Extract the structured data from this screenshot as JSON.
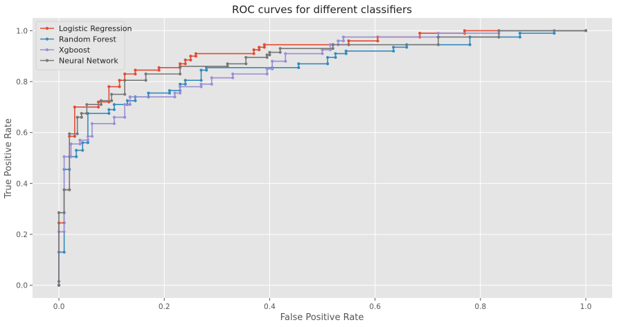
{
  "chart_data": {
    "type": "line",
    "title": "ROC curves for different classifiers",
    "xlabel": "False Positive Rate",
    "ylabel": "True Positive Rate",
    "xlim": [
      -0.05,
      1.05
    ],
    "ylim": [
      -0.05,
      1.05
    ],
    "xticks": [
      0.0,
      0.2,
      0.4,
      0.6,
      0.8,
      1.0
    ],
    "yticks": [
      0.0,
      0.2,
      0.4,
      0.6,
      0.8,
      1.0
    ],
    "xtick_labels": [
      "0.0",
      "0.2",
      "0.4",
      "0.6",
      "0.8",
      "1.0"
    ],
    "ytick_labels": [
      "0.0",
      "0.2",
      "0.4",
      "0.6",
      "0.8",
      "1.0"
    ],
    "grid": true,
    "legend_position": "top-left",
    "style": {
      "plot_background": "#e5e5e5",
      "grid_color": "#ffffff"
    },
    "series": [
      {
        "name": "Logistic Regression",
        "color": "#e24a33",
        "points": [
          [
            0.0,
            0.0
          ],
          [
            0.0,
            0.245
          ],
          [
            0.01,
            0.245
          ],
          [
            0.01,
            0.375
          ],
          [
            0.02,
            0.375
          ],
          [
            0.02,
            0.585
          ],
          [
            0.03,
            0.585
          ],
          [
            0.03,
            0.7
          ],
          [
            0.075,
            0.7
          ],
          [
            0.075,
            0.72
          ],
          [
            0.095,
            0.72
          ],
          [
            0.095,
            0.78
          ],
          [
            0.115,
            0.78
          ],
          [
            0.115,
            0.805
          ],
          [
            0.125,
            0.805
          ],
          [
            0.125,
            0.83
          ],
          [
            0.145,
            0.83
          ],
          [
            0.145,
            0.845
          ],
          [
            0.19,
            0.845
          ],
          [
            0.19,
            0.855
          ],
          [
            0.23,
            0.855
          ],
          [
            0.23,
            0.87
          ],
          [
            0.24,
            0.87
          ],
          [
            0.24,
            0.885
          ],
          [
            0.25,
            0.885
          ],
          [
            0.25,
            0.9
          ],
          [
            0.26,
            0.9
          ],
          [
            0.26,
            0.91
          ],
          [
            0.37,
            0.91
          ],
          [
            0.37,
            0.925
          ],
          [
            0.38,
            0.925
          ],
          [
            0.38,
            0.935
          ],
          [
            0.39,
            0.935
          ],
          [
            0.39,
            0.945
          ],
          [
            0.52,
            0.945
          ],
          [
            0.55,
            0.945
          ],
          [
            0.55,
            0.96
          ],
          [
            0.605,
            0.96
          ],
          [
            0.605,
            0.975
          ],
          [
            0.685,
            0.975
          ],
          [
            0.685,
            0.99
          ],
          [
            0.77,
            0.99
          ],
          [
            0.77,
            1.0
          ],
          [
            1.0,
            1.0
          ]
        ]
      },
      {
        "name": "Random Forest",
        "color": "#348abd",
        "points": [
          [
            0.0,
            0.0
          ],
          [
            0.0,
            0.13
          ],
          [
            0.01,
            0.13
          ],
          [
            0.01,
            0.455
          ],
          [
            0.02,
            0.455
          ],
          [
            0.02,
            0.505
          ],
          [
            0.033,
            0.505
          ],
          [
            0.033,
            0.53
          ],
          [
            0.045,
            0.53
          ],
          [
            0.045,
            0.56
          ],
          [
            0.055,
            0.56
          ],
          [
            0.055,
            0.675
          ],
          [
            0.095,
            0.675
          ],
          [
            0.095,
            0.69
          ],
          [
            0.105,
            0.69
          ],
          [
            0.105,
            0.71
          ],
          [
            0.13,
            0.71
          ],
          [
            0.13,
            0.725
          ],
          [
            0.145,
            0.725
          ],
          [
            0.145,
            0.74
          ],
          [
            0.17,
            0.74
          ],
          [
            0.17,
            0.755
          ],
          [
            0.21,
            0.755
          ],
          [
            0.21,
            0.765
          ],
          [
            0.23,
            0.765
          ],
          [
            0.23,
            0.79
          ],
          [
            0.24,
            0.79
          ],
          [
            0.24,
            0.805
          ],
          [
            0.27,
            0.805
          ],
          [
            0.27,
            0.845
          ],
          [
            0.28,
            0.845
          ],
          [
            0.28,
            0.855
          ],
          [
            0.405,
            0.855
          ],
          [
            0.455,
            0.855
          ],
          [
            0.455,
            0.87
          ],
          [
            0.51,
            0.87
          ],
          [
            0.51,
            0.895
          ],
          [
            0.525,
            0.895
          ],
          [
            0.525,
            0.91
          ],
          [
            0.545,
            0.91
          ],
          [
            0.545,
            0.92
          ],
          [
            0.635,
            0.92
          ],
          [
            0.635,
            0.935
          ],
          [
            0.66,
            0.935
          ],
          [
            0.66,
            0.945
          ],
          [
            0.78,
            0.945
          ],
          [
            0.78,
            0.975
          ],
          [
            0.875,
            0.975
          ],
          [
            0.875,
            0.99
          ],
          [
            0.94,
            0.99
          ],
          [
            0.94,
            1.0
          ],
          [
            1.0,
            1.0
          ]
        ]
      },
      {
        "name": "Xgboost",
        "color": "#988ed5",
        "points": [
          [
            0.0,
            0.0
          ],
          [
            0.0,
            0.21
          ],
          [
            0.01,
            0.21
          ],
          [
            0.01,
            0.505
          ],
          [
            0.023,
            0.505
          ],
          [
            0.023,
            0.555
          ],
          [
            0.04,
            0.555
          ],
          [
            0.04,
            0.57
          ],
          [
            0.055,
            0.57
          ],
          [
            0.055,
            0.585
          ],
          [
            0.063,
            0.585
          ],
          [
            0.063,
            0.635
          ],
          [
            0.105,
            0.635
          ],
          [
            0.105,
            0.66
          ],
          [
            0.125,
            0.66
          ],
          [
            0.125,
            0.71
          ],
          [
            0.135,
            0.71
          ],
          [
            0.135,
            0.74
          ],
          [
            0.22,
            0.74
          ],
          [
            0.22,
            0.755
          ],
          [
            0.23,
            0.755
          ],
          [
            0.23,
            0.78
          ],
          [
            0.27,
            0.78
          ],
          [
            0.27,
            0.79
          ],
          [
            0.29,
            0.79
          ],
          [
            0.29,
            0.815
          ],
          [
            0.33,
            0.815
          ],
          [
            0.33,
            0.83
          ],
          [
            0.395,
            0.83
          ],
          [
            0.395,
            0.85
          ],
          [
            0.405,
            0.85
          ],
          [
            0.405,
            0.88
          ],
          [
            0.43,
            0.88
          ],
          [
            0.43,
            0.91
          ],
          [
            0.5,
            0.91
          ],
          [
            0.5,
            0.925
          ],
          [
            0.515,
            0.925
          ],
          [
            0.515,
            0.945
          ],
          [
            0.53,
            0.945
          ],
          [
            0.53,
            0.96
          ],
          [
            0.54,
            0.96
          ],
          [
            0.54,
            0.975
          ],
          [
            0.72,
            0.975
          ],
          [
            0.72,
            0.99
          ],
          [
            0.835,
            0.99
          ],
          [
            0.835,
            1.0
          ],
          [
            1.0,
            1.0
          ]
        ]
      },
      {
        "name": "Neural Network",
        "color": "#777777",
        "points": [
          [
            0.0,
            0.0
          ],
          [
            0.0,
            0.015
          ],
          [
            0.0,
            0.285
          ],
          [
            0.01,
            0.285
          ],
          [
            0.01,
            0.375
          ],
          [
            0.02,
            0.375
          ],
          [
            0.02,
            0.595
          ],
          [
            0.035,
            0.595
          ],
          [
            0.035,
            0.66
          ],
          [
            0.043,
            0.66
          ],
          [
            0.043,
            0.675
          ],
          [
            0.053,
            0.675
          ],
          [
            0.053,
            0.71
          ],
          [
            0.08,
            0.71
          ],
          [
            0.08,
            0.725
          ],
          [
            0.1,
            0.725
          ],
          [
            0.1,
            0.75
          ],
          [
            0.125,
            0.75
          ],
          [
            0.125,
            0.805
          ],
          [
            0.165,
            0.805
          ],
          [
            0.165,
            0.83
          ],
          [
            0.23,
            0.83
          ],
          [
            0.23,
            0.86
          ],
          [
            0.32,
            0.86
          ],
          [
            0.32,
            0.87
          ],
          [
            0.355,
            0.87
          ],
          [
            0.355,
            0.895
          ],
          [
            0.395,
            0.895
          ],
          [
            0.395,
            0.905
          ],
          [
            0.4,
            0.905
          ],
          [
            0.4,
            0.915
          ],
          [
            0.42,
            0.915
          ],
          [
            0.42,
            0.93
          ],
          [
            0.52,
            0.93
          ],
          [
            0.52,
            0.945
          ],
          [
            0.72,
            0.945
          ],
          [
            0.72,
            0.975
          ],
          [
            0.835,
            0.975
          ],
          [
            0.835,
            1.0
          ],
          [
            1.0,
            1.0
          ]
        ]
      }
    ]
  }
}
